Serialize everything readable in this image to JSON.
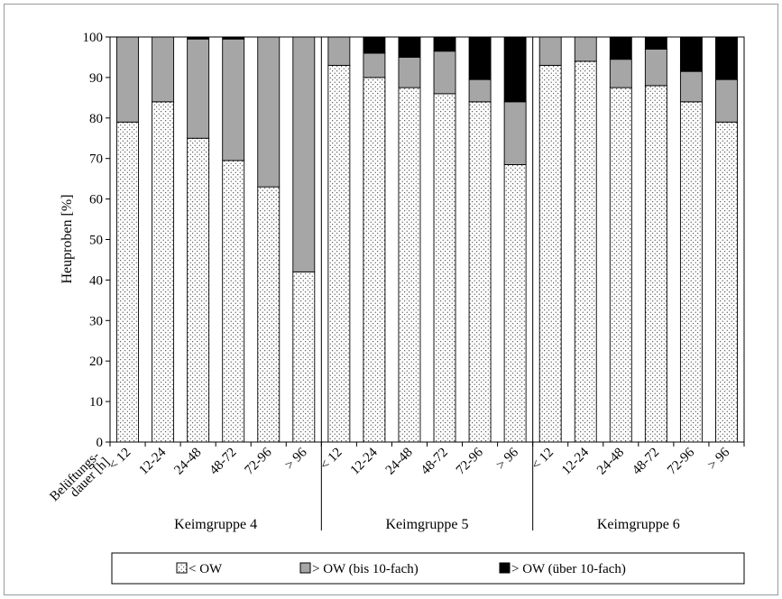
{
  "chart_data": {
    "type": "bar",
    "stacked": true,
    "ylabel": "Heuproben [%]",
    "xlabel": "Belüftungs-\ndauer [h]",
    "ylim": [
      0,
      100
    ],
    "yticks": [
      0,
      10,
      20,
      30,
      40,
      50,
      60,
      70,
      80,
      90,
      100
    ],
    "grid": false,
    "legend_position": "bottom",
    "categories": [
      "< 12",
      "12-24",
      "24-48",
      "48-72",
      "72-96",
      "> 96"
    ],
    "groups": [
      "Keimgruppe 4",
      "Keimgruppe 5",
      "Keimgruppe 6"
    ],
    "series": [
      {
        "name": "< OW",
        "pattern": "dotted",
        "color": "#ffffff",
        "values": [
          [
            79,
            84,
            75,
            69.5,
            63,
            42
          ],
          [
            93,
            90,
            87.5,
            86,
            84,
            68.5
          ],
          [
            93,
            94,
            87.5,
            88,
            84,
            79
          ]
        ]
      },
      {
        "name": "> OW (bis 10-fach)",
        "color": "#a6a6a6",
        "values": [
          [
            21,
            16,
            24.5,
            30,
            37,
            58
          ],
          [
            7,
            6,
            7.5,
            10.5,
            5.5,
            15.5
          ],
          [
            7,
            6,
            7,
            9,
            7.5,
            10.5
          ]
        ]
      },
      {
        "name": "> OW (über 10-fach)",
        "color": "#000000",
        "values": [
          [
            0,
            0,
            0.5,
            0.5,
            0,
            0
          ],
          [
            0,
            4,
            5,
            3.5,
            10.5,
            16
          ],
          [
            0,
            0,
            5.5,
            3,
            8.5,
            10.5
          ]
        ]
      }
    ]
  }
}
